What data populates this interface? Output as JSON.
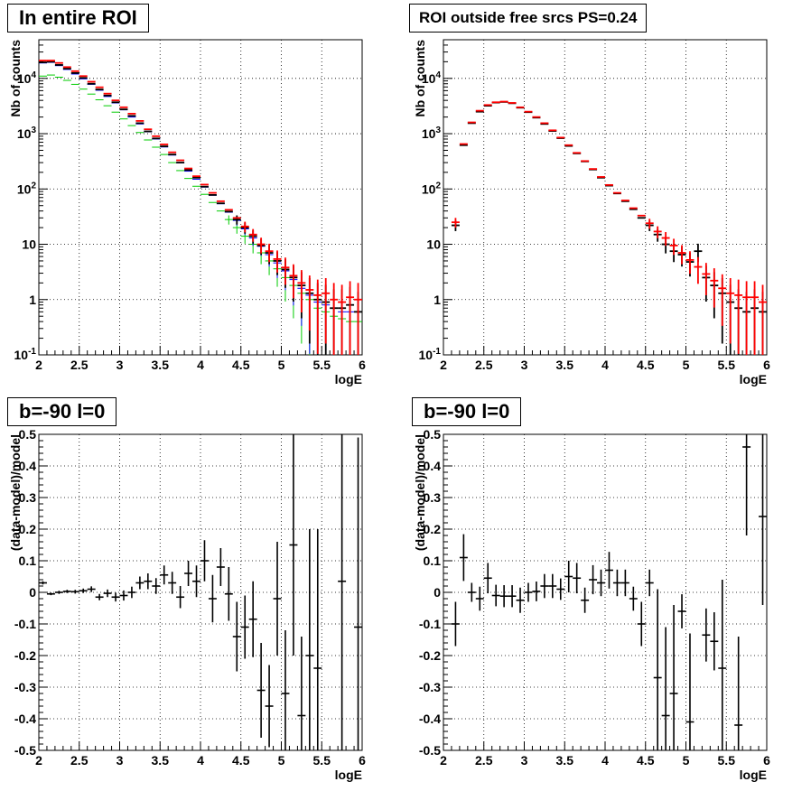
{
  "colors": {
    "data": "#000000",
    "model_red": "#ff0000",
    "model_blue": "#0000ff",
    "model_green": "#00cc00",
    "grid": "#000000"
  },
  "chart_data": [
    {
      "type": "scatter",
      "title": "In entire ROI",
      "xlabel": "logE",
      "ylabel": "Nb of counts",
      "xlim": [
        2,
        6
      ],
      "ylim": [
        0.1,
        50000
      ],
      "yscale": "log",
      "grid": true,
      "xticks": [
        "2",
        "2.5",
        "3",
        "3.5",
        "4",
        "4.5",
        "5",
        "5.5",
        "6"
      ],
      "yticks": [
        "10^{-1}",
        "1",
        "10",
        "10^{2}",
        "10^{3}",
        "10^{4}"
      ],
      "x": [
        2.05,
        2.15,
        2.25,
        2.35,
        2.45,
        2.55,
        2.65,
        2.75,
        2.85,
        2.95,
        3.05,
        3.15,
        3.25,
        3.35,
        3.45,
        3.55,
        3.65,
        3.75,
        3.85,
        3.95,
        4.05,
        4.15,
        4.25,
        4.35,
        4.45,
        4.55,
        4.65,
        4.75,
        4.85,
        4.95,
        5.05,
        5.15,
        5.25,
        5.35,
        5.45,
        5.55,
        5.65,
        5.75,
        5.85,
        5.95
      ],
      "series": [
        {
          "color": "red",
          "values": [
            21000,
            21000,
            19000,
            16000,
            13500,
            11000,
            8700,
            6900,
            5300,
            4000,
            3000,
            2300,
            1700,
            1200,
            900,
            640,
            460,
            330,
            235,
            170,
            120,
            85,
            60,
            42,
            30,
            21,
            15,
            10,
            7.5,
            5.4,
            3.8,
            2.7,
            2.0,
            1.5,
            1.2,
            1.3,
            1.0,
            0.9,
            1.1,
            1.0
          ]
        },
        {
          "color": "black",
          "values": [
            19500,
            20000,
            17500,
            15000,
            12500,
            10200,
            8000,
            6300,
            4900,
            3700,
            2750,
            2100,
            1550,
            1100,
            820,
            590,
            420,
            300,
            220,
            160,
            110,
            78,
            55,
            39,
            28,
            20,
            14,
            9.5,
            7,
            5,
            3.5,
            2.5,
            1.8,
            1.3,
            1.0,
            0.9,
            0.7,
            0.7,
            0.8,
            0.6
          ]
        },
        {
          "color": "blue",
          "values": [
            19000,
            19500,
            17000,
            14500,
            12000,
            9800,
            7800,
            6100,
            4700,
            3600,
            2700,
            2000,
            1500,
            1080,
            800,
            575,
            410,
            295,
            210,
            150,
            108,
            77,
            54,
            38,
            27,
            19,
            13,
            9.2,
            6.5,
            4.6,
            3.3,
            2.3,
            1.6,
            1.2,
            0.9,
            0.8,
            0.7,
            0.6,
            0.6,
            0.6
          ]
        },
        {
          "color": "green",
          "values": [
            11000,
            11500,
            10500,
            9200,
            7800,
            6400,
            5200,
            4100,
            3200,
            2450,
            1850,
            1400,
            1050,
            770,
            570,
            420,
            300,
            215,
            155,
            112,
            80,
            57,
            40,
            28,
            20,
            14,
            10,
            7,
            5,
            3.6,
            2.5,
            1.8,
            1.3,
            1.0,
            0.7,
            0.6,
            0.5,
            0.45,
            0.4,
            0.4
          ]
        }
      ]
    },
    {
      "type": "scatter",
      "title": "ROI outside free srcs PS=0.24",
      "xlabel": "logE",
      "ylabel": "Nb of counts",
      "xlim": [
        2,
        6
      ],
      "ylim": [
        0.1,
        50000
      ],
      "yscale": "log",
      "grid": true,
      "xticks": [
        "2",
        "2.5",
        "3",
        "3.5",
        "4",
        "4.5",
        "5",
        "5.5",
        "6"
      ],
      "yticks": [
        "10^{-1}",
        "1",
        "10",
        "10^{2}",
        "10^{3}",
        "10^{4}"
      ],
      "x": [
        2.15,
        2.25,
        2.35,
        2.45,
        2.55,
        2.65,
        2.75,
        2.85,
        2.95,
        3.05,
        3.15,
        3.25,
        3.35,
        3.45,
        3.55,
        3.65,
        3.75,
        3.85,
        3.95,
        4.05,
        4.15,
        4.25,
        4.35,
        4.45,
        4.55,
        4.65,
        4.75,
        4.85,
        4.95,
        5.05,
        5.15,
        5.25,
        5.35,
        5.45,
        5.55,
        5.65,
        5.75,
        5.85,
        5.95
      ],
      "series": [
        {
          "color": "red",
          "values": [
            25,
            650,
            1600,
            2600,
            3300,
            3700,
            3800,
            3600,
            3000,
            2500,
            2000,
            1550,
            1150,
            850,
            620,
            450,
            320,
            230,
            165,
            118,
            85,
            62,
            45,
            33,
            24,
            17,
            13,
            9.5,
            7,
            5.2,
            3.9,
            2.9,
            2.2,
            1.6,
            1.3,
            1.2,
            1.1,
            1.1,
            0.9
          ]
        },
        {
          "color": "black",
          "values": [
            22,
            620,
            1550,
            2500,
            3200,
            3650,
            3750,
            3550,
            2950,
            2450,
            1950,
            1500,
            1120,
            830,
            600,
            440,
            315,
            225,
            160,
            115,
            83,
            60,
            43,
            30,
            22,
            15,
            10,
            7.5,
            6.5,
            4.8,
            7.5,
            2.5,
            1.8,
            1.3,
            0.9,
            0.7,
            0.6,
            0.7,
            0.6
          ]
        }
      ]
    },
    {
      "type": "scatter",
      "title": "b=-90 l=0",
      "xlabel": "logE",
      "ylabel": "(data-model)/model",
      "xlim": [
        2,
        6
      ],
      "ylim": [
        -0.5,
        0.5
      ],
      "grid": true,
      "xticks": [
        "2",
        "2.5",
        "3",
        "3.5",
        "4",
        "4.5",
        "5",
        "5.5",
        "6"
      ],
      "yticks": [
        "-0.5",
        "-0.4",
        "-0.3",
        "-0.2",
        "-0.1",
        "0",
        "0.1",
        "0.2",
        "0.3",
        "0.4",
        "0.5"
      ],
      "x": [
        2.05,
        2.15,
        2.25,
        2.35,
        2.45,
        2.55,
        2.65,
        2.75,
        2.85,
        2.95,
        3.05,
        3.15,
        3.25,
        3.35,
        3.45,
        3.55,
        3.65,
        3.75,
        3.85,
        3.95,
        4.05,
        4.15,
        4.25,
        4.35,
        4.45,
        4.55,
        4.65,
        4.75,
        4.85,
        4.95,
        5.05,
        5.15,
        5.25,
        5.35,
        5.45,
        5.75,
        5.95
      ],
      "values": [
        0.03,
        -0.005,
        0.0,
        0.003,
        0.002,
        0.005,
        0.01,
        -0.015,
        -0.003,
        -0.015,
        -0.01,
        0.0,
        0.03,
        0.035,
        0.02,
        0.055,
        0.03,
        -0.015,
        0.06,
        0.035,
        0.1,
        -0.02,
        0.08,
        -0.005,
        -0.14,
        -0.11,
        -0.085,
        -0.31,
        -0.36,
        -0.02,
        -0.32,
        0.15,
        -0.39,
        -0.2,
        -0.24,
        0.035,
        -0.11
      ],
      "errors": [
        0.005,
        0.004,
        0.005,
        0.005,
        0.006,
        0.007,
        0.009,
        0.01,
        0.012,
        0.014,
        0.016,
        0.018,
        0.02,
        0.025,
        0.025,
        0.03,
        0.035,
        0.035,
        0.04,
        0.05,
        0.065,
        0.075,
        0.06,
        0.085,
        0.11,
        0.1,
        0.12,
        0.15,
        0.13,
        0.18,
        0.2,
        0.35,
        0.25,
        0.4,
        0.44,
        0.55,
        0.6
      ]
    },
    {
      "type": "scatter",
      "title": "b=-90 l=0",
      "xlabel": "logE",
      "ylabel": "(data-model)/model",
      "xlim": [
        2,
        6
      ],
      "ylim": [
        -0.5,
        0.5
      ],
      "grid": true,
      "xticks": [
        "2",
        "2.5",
        "3",
        "3.5",
        "4",
        "4.5",
        "5",
        "5.5",
        "6"
      ],
      "yticks": [
        "-0.5",
        "-0.4",
        "-0.3",
        "-0.2",
        "-0.1",
        "0",
        "0.1",
        "0.2",
        "0.3",
        "0.4",
        "0.5"
      ],
      "x": [
        2.15,
        2.25,
        2.35,
        2.45,
        2.55,
        2.65,
        2.75,
        2.85,
        2.95,
        3.05,
        3.15,
        3.25,
        3.35,
        3.45,
        3.55,
        3.65,
        3.75,
        3.85,
        3.95,
        4.05,
        4.15,
        4.25,
        4.35,
        4.45,
        4.55,
        4.65,
        4.75,
        4.85,
        4.95,
        5.05,
        5.25,
        5.35,
        5.45,
        5.65,
        5.75,
        5.95
      ],
      "values": [
        -0.1,
        0.11,
        0.0,
        -0.02,
        0.045,
        -0.01,
        -0.012,
        -0.012,
        -0.025,
        0.0,
        0.003,
        0.02,
        0.02,
        0.01,
        0.05,
        0.045,
        -0.025,
        0.04,
        0.03,
        0.07,
        0.03,
        0.03,
        -0.02,
        -0.1,
        0.03,
        -0.27,
        -0.39,
        -0.32,
        -0.06,
        -0.41,
        -0.135,
        -0.155,
        -0.24,
        -0.42,
        0.46,
        0.24
      ]
    }
  ]
}
